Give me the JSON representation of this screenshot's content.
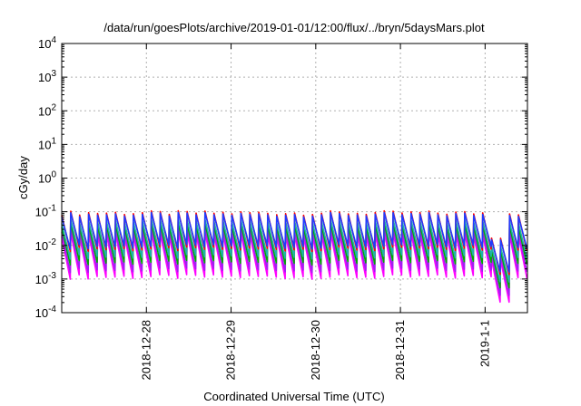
{
  "chart_data": {
    "type": "line",
    "title": "/data/run/goesPlots/archive/2019-01-01/12:00/flux/../bryn/5daysMars.plot",
    "xlabel": "Coordinated Universal Time (UTC)",
    "ylabel": "cGy/day",
    "xlim": [
      "2018-12-27T00:00",
      "2019-01-01T12:00"
    ],
    "ylim": [
      0.0001,
      10000
    ],
    "yscale": "log",
    "grid": true,
    "x_ticks": [
      {
        "date": "2018-12-28T00:00",
        "label": "2018-12-28"
      },
      {
        "date": "2018-12-29T00:00",
        "label": "2018-12-29"
      },
      {
        "date": "2018-12-30T00:00",
        "label": "2018-12-30"
      },
      {
        "date": "2018-12-31T00:00",
        "label": "2018-12-31"
      },
      {
        "date": "2019-01-01T00:00",
        "label": "2019-1-1"
      }
    ],
    "y_ticks": [
      {
        "value": 0.0001,
        "base": "10",
        "exp": "-4"
      },
      {
        "value": 0.001,
        "base": "10",
        "exp": "-3"
      },
      {
        "value": 0.01,
        "base": "10",
        "exp": "-2"
      },
      {
        "value": 0.1,
        "base": "10",
        "exp": "-1"
      },
      {
        "value": 1,
        "base": "10",
        "exp": "0"
      },
      {
        "value": 10,
        "base": "10",
        "exp": "1"
      },
      {
        "value": 100,
        "base": "10",
        "exp": "2"
      },
      {
        "value": 1000,
        "base": "10",
        "exp": "3"
      },
      {
        "value": 10000,
        "base": "10",
        "exp": "4"
      }
    ],
    "sawtooth": {
      "start": "2018-12-27T00:00",
      "end": "2019-01-01T12:00",
      "cycles": 52,
      "gap_start": "2019-01-01T00:00",
      "gap_end": "2019-01-01T06:30",
      "gap_drop": 0.2
    },
    "series": [
      {
        "color": "#ff00ff",
        "peak": 0.022,
        "trough": 0.0012
      },
      {
        "color": "#a020f0",
        "peak": 0.03,
        "trough": 0.0019
      },
      {
        "color": "#00aa00",
        "peak": 0.042,
        "trough": 0.0032
      },
      {
        "color": "#20b2aa",
        "peak": 0.055,
        "trough": 0.0048
      },
      {
        "color": "#ff0000",
        "peak": 0.095,
        "trough": 0.008
      },
      {
        "color": "#1f3cff",
        "peak": 0.085,
        "trough": 0.0095
      }
    ]
  }
}
